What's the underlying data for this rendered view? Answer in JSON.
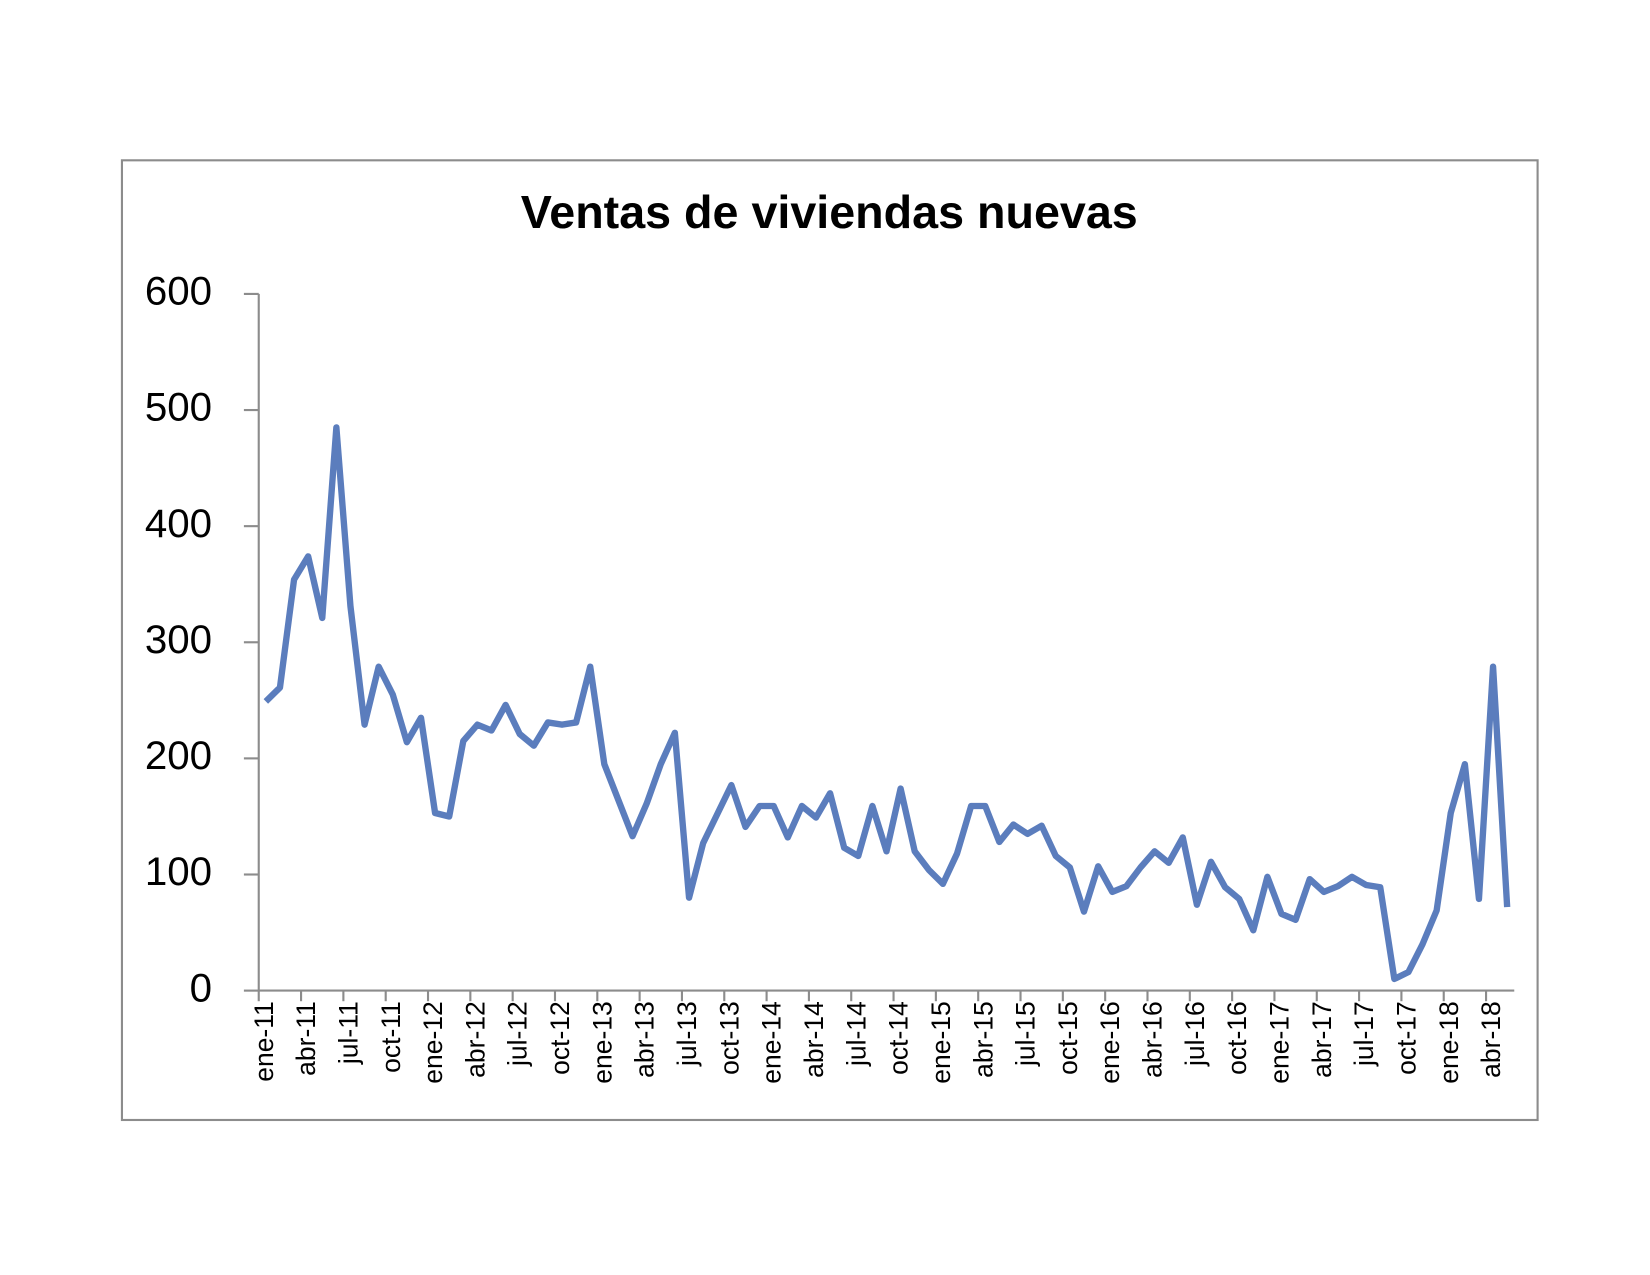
{
  "chart_data": {
    "type": "line",
    "title": "Ventas de viviendas nuevas",
    "categories": [
      "ene-11",
      null,
      null,
      "abr-11",
      null,
      null,
      "jul-11",
      null,
      null,
      "oct-11",
      null,
      null,
      "ene-12",
      null,
      null,
      "abr-12",
      null,
      null,
      "jul-12",
      null,
      null,
      "oct-12",
      null,
      null,
      "ene-13",
      null,
      null,
      "abr-13",
      null,
      null,
      "jul-13",
      null,
      null,
      "oct-13",
      null,
      null,
      "ene-14",
      null,
      null,
      "abr-14",
      null,
      null,
      "jul-14",
      null,
      null,
      "oct-14",
      null,
      null,
      "ene-15",
      null,
      null,
      "abr-15",
      null,
      null,
      "jul-15",
      null,
      null,
      "oct-15",
      null,
      null,
      "ene-16",
      null,
      null,
      "abr-16",
      null,
      null,
      "jul-16",
      null,
      null,
      "oct-16",
      null,
      null,
      "ene-17",
      null,
      null,
      "abr-17",
      null,
      null,
      "jul-17",
      null,
      null,
      "oct-17",
      null,
      null,
      "ene-18",
      null,
      null,
      "abr-18",
      null
    ],
    "series": [
      {
        "color": "#5b7dbd",
        "values": [
          249,
          261,
          354,
          374,
          321,
          485,
          331,
          229,
          279,
          255,
          214,
          235,
          153,
          150,
          215,
          229,
          224,
          246,
          221,
          211,
          231,
          229,
          231,
          279,
          195,
          164,
          133,
          161,
          195,
          222,
          80,
          127,
          152,
          177,
          141,
          159,
          159,
          132,
          159,
          149,
          170,
          123,
          116,
          159,
          120,
          174,
          120,
          104,
          92,
          118,
          159,
          159,
          128,
          143,
          135,
          142,
          116,
          106,
          68,
          107,
          85,
          90,
          106,
          120,
          110,
          132,
          74,
          111,
          89,
          79,
          52,
          98,
          66,
          61,
          96,
          85,
          90,
          98,
          91,
          89,
          10,
          16,
          40,
          69,
          153,
          195,
          79,
          279,
          72
        ]
      }
    ],
    "ylim": [
      0,
      600
    ],
    "yticks": [
      0,
      100,
      200,
      300,
      400,
      500,
      600
    ]
  }
}
